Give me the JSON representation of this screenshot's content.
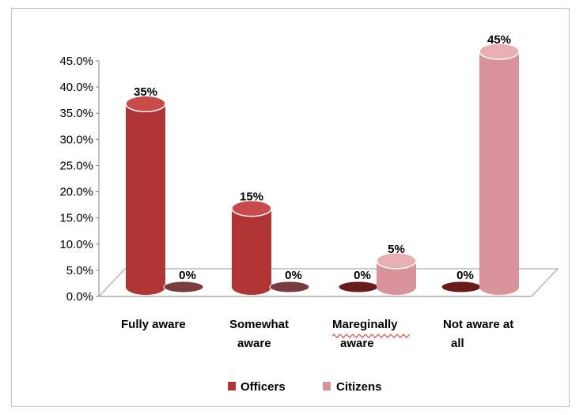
{
  "chart_data": {
    "type": "bar",
    "title": "",
    "xlabel": "",
    "ylabel": "",
    "categories": [
      [
        "Fully aware"
      ],
      [
        "Somewhat",
        "aware"
      ],
      [
        "Mareginally",
        "aware"
      ],
      [
        "Not  aware  at",
        "all"
      ]
    ],
    "series": [
      {
        "name": "Officers",
        "values": [
          35,
          15,
          0,
          0
        ],
        "labels": [
          "35%",
          "15%",
          "0%",
          "0%"
        ],
        "color": "#b03434",
        "top_color": "#c94a4a",
        "bottom_color": "#6b1a1a"
      },
      {
        "name": "Citizens",
        "values": [
          0,
          0,
          5,
          45
        ],
        "labels": [
          "0%",
          "0%",
          "5%",
          "45%"
        ],
        "color": "#d9939a",
        "top_color": "#e8aeb3",
        "bottom_color": "#7a3d3d"
      }
    ],
    "ylim": [
      0,
      45
    ],
    "yticks": [
      "0.0%",
      "5.0%",
      "10.0%",
      "15.0%",
      "20.0%",
      "25.0%",
      "30.0%",
      "35.0%",
      "40.0%",
      "45.0%"
    ],
    "legend_position": "bottom",
    "grid": false,
    "style": "3d-cylinder"
  }
}
